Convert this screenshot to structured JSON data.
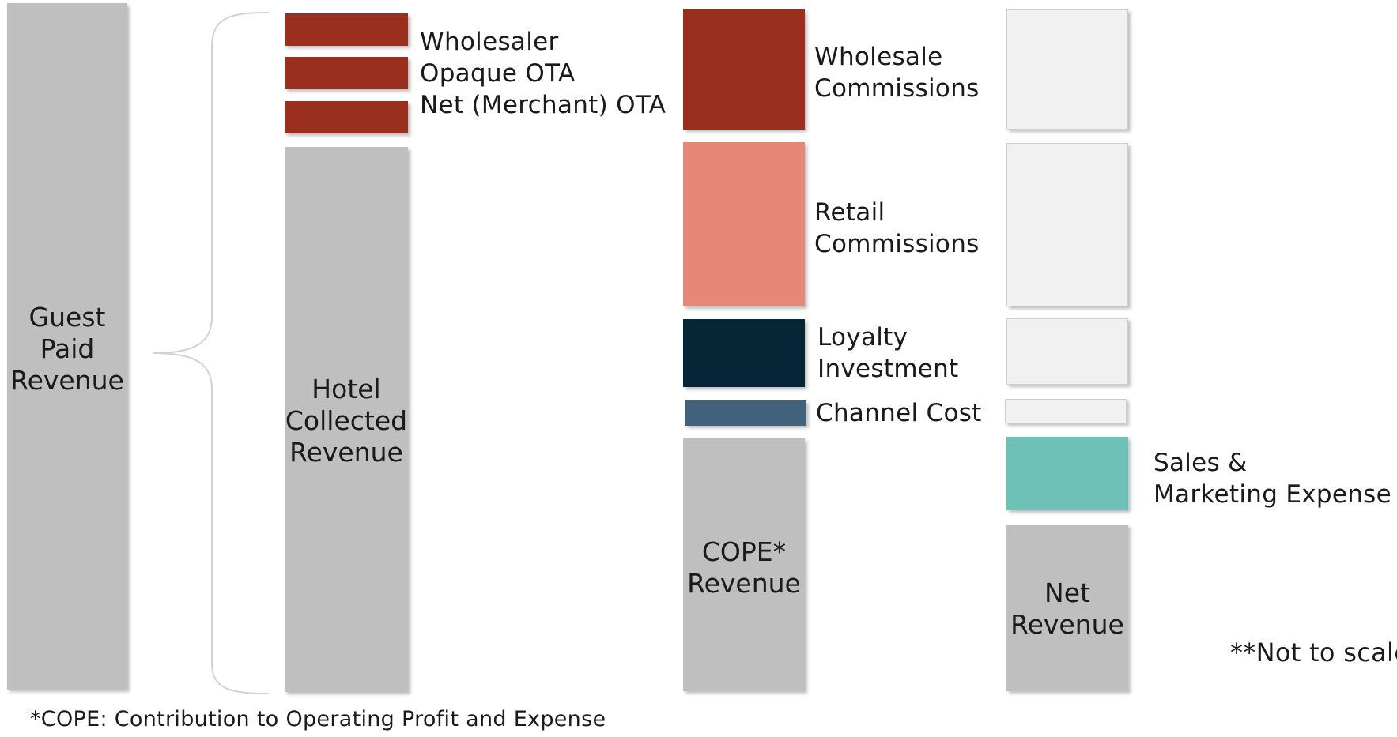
{
  "colors": {
    "gray": "#bfbfbf",
    "wholesale_red": "#9b2f1e",
    "retail_salmon": "#e58878",
    "loyalty_navy": "#062638",
    "channel_slate": "#41627a",
    "light_gray": "#f1f1f1",
    "sales_teal": "#6dc1b7"
  },
  "guest_paid": {
    "text": "Guest\nPaid\nRevenue"
  },
  "hotel_collected": {
    "text": "Hotel\nCollected\nRevenue",
    "wholesaler": "Wholesaler",
    "opaque_ota": "Opaque OTA",
    "net_merchant_ota": "Net (Merchant) OTA"
  },
  "cope": {
    "text": "COPE*\nRevenue",
    "wholesale_commissions": "Wholesale\nCommissions",
    "retail_commissions": "Retail\nCommissions",
    "loyalty_investment": "Loyalty\nInvestment",
    "channel_cost": "Channel Cost"
  },
  "net": {
    "text": "Net\nRevenue",
    "sales_marketing": "Sales &\nMarketing Expense"
  },
  "notes": {
    "not_to_scale": "**Not to scale",
    "cope_footnote": "*COPE: Contribution to Operating Profit and Expense"
  }
}
